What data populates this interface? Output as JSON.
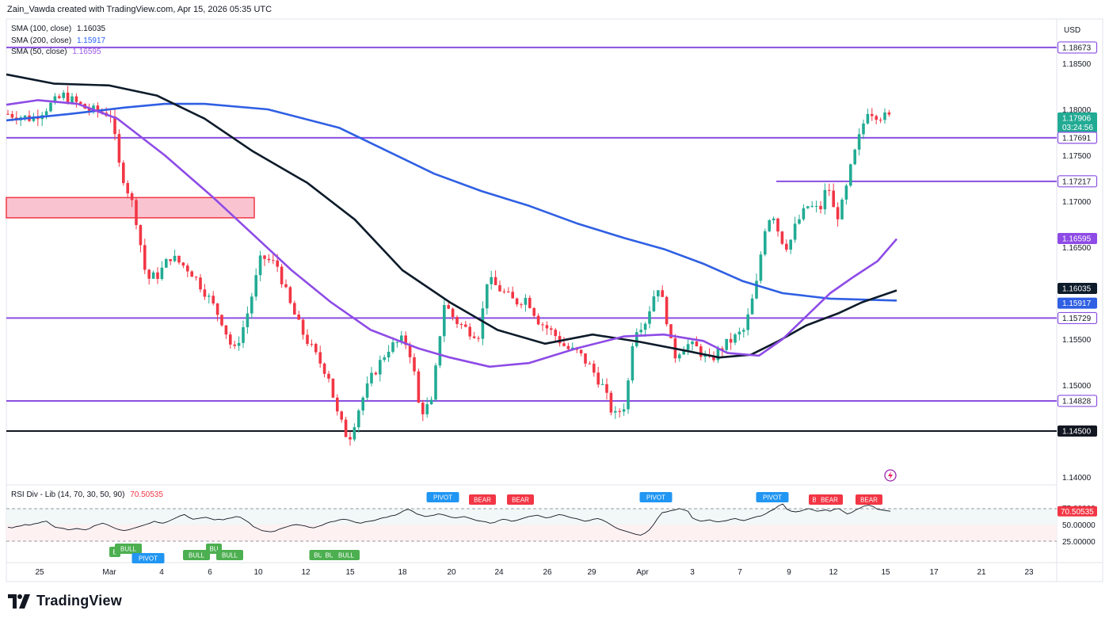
{
  "header": {
    "text": "Zain_Vawda created with TradingView.com, Apr 15, 2026 05:35 UTC"
  },
  "legend": [
    {
      "label": "SMA (100, close)",
      "value": "1.16035",
      "color": "#131722"
    },
    {
      "label": "SMA (200, close)",
      "value": "1.15917",
      "color": "#2962ff"
    },
    {
      "label": "SMA (50, close)",
      "value": "1.16595",
      "color": "#9b59e6"
    }
  ],
  "rsi_legend": {
    "label": "RSI Div - Lib (14, 70, 30, 50, 90)",
    "value": "70.50535"
  },
  "footer": {
    "brand": "TradingView"
  },
  "colors": {
    "up": "#22ab94",
    "down": "#f23645",
    "sma100": "#0d1b2a",
    "sma200": "#2f5fe3",
    "sma50": "#8e4be6",
    "level": "#8a4fe0",
    "zone": "#f9c4d0"
  },
  "chart_data": {
    "type": "candlestick",
    "currency": "USD",
    "y_axis_ticks": [
      "1.18500",
      "1.18000",
      "1.17500",
      "1.17000",
      "1.16500",
      "1.15500",
      "1.15000",
      "1.14000"
    ],
    "x_axis_ticks": [
      "25",
      "Mar",
      "4",
      "6",
      "10",
      "12",
      "15",
      "18",
      "20",
      "24",
      "26",
      "29",
      "Apr",
      "3",
      "7",
      "9",
      "12",
      "15",
      "17",
      "21",
      "23"
    ],
    "price_tags": [
      {
        "value": "1.18673",
        "style": "outline",
        "color": "#8a4fe0"
      },
      {
        "value": "1.17906",
        "style": "fill",
        "color": "#22ab94",
        "sub": "03:24:56"
      },
      {
        "value": "1.17691",
        "style": "outline",
        "color": "#8a4fe0"
      },
      {
        "value": "1.17217",
        "style": "outline",
        "color": "#8a4fe0"
      },
      {
        "value": "1.16595",
        "style": "fill",
        "color": "#8e4be6"
      },
      {
        "value": "1.16035",
        "style": "fill",
        "color": "#0d1b2a"
      },
      {
        "value": "1.15917",
        "style": "fill",
        "color": "#2f5fe3"
      },
      {
        "value": "1.15729",
        "style": "outline",
        "color": "#8a4fe0"
      },
      {
        "value": "1.14828",
        "style": "outline",
        "color": "#8a4fe0"
      },
      {
        "value": "1.14500",
        "style": "fill",
        "color": "#131722"
      }
    ],
    "horizontal_levels": [
      1.18673,
      1.17691,
      1.15729,
      1.14828
    ],
    "partial_levels": [
      {
        "price": 1.17217,
        "from_x": 980
      }
    ],
    "support_level": 1.145,
    "zone": {
      "top": 1.1704,
      "bottom": 1.1682
    },
    "sma100_path": [
      [
        1.1838,
        0
      ],
      [
        1.1828,
        60
      ],
      [
        1.1826,
        130
      ],
      [
        1.1815,
        190
      ],
      [
        1.179,
        250
      ],
      [
        1.1755,
        310
      ],
      [
        1.172,
        380
      ],
      [
        1.168,
        440
      ],
      [
        1.1625,
        500
      ],
      [
        1.159,
        560
      ],
      [
        1.156,
        620
      ],
      [
        1.1545,
        680
      ],
      [
        1.1555,
        740
      ],
      [
        1.1547,
        800
      ],
      [
        1.1537,
        860
      ],
      [
        1.153,
        900
      ],
      [
        1.1533,
        940
      ],
      [
        1.1548,
        975
      ],
      [
        1.1565,
        1010
      ],
      [
        1.1578,
        1050
      ],
      [
        1.159,
        1080
      ],
      [
        1.1603,
        1124
      ]
    ],
    "sma200_path": [
      [
        1.1788,
        0
      ],
      [
        1.1795,
        80
      ],
      [
        1.1802,
        150
      ],
      [
        1.1806,
        200
      ],
      [
        1.1806,
        250
      ],
      [
        1.18,
        330
      ],
      [
        1.178,
        420
      ],
      [
        1.1755,
        480
      ],
      [
        1.173,
        540
      ],
      [
        1.1711,
        600
      ],
      [
        1.1695,
        660
      ],
      [
        1.1676,
        720
      ],
      [
        1.166,
        780
      ],
      [
        1.1648,
        830
      ],
      [
        1.1632,
        880
      ],
      [
        1.1613,
        930
      ],
      [
        1.16,
        980
      ],
      [
        1.1594,
        1040
      ],
      [
        1.1592,
        1124
      ]
    ],
    "sma50_path": [
      [
        1.1805,
        0
      ],
      [
        1.181,
        40
      ],
      [
        1.1806,
        90
      ],
      [
        1.179,
        140
      ],
      [
        1.175,
        200
      ],
      [
        1.1705,
        260
      ],
      [
        1.1665,
        310
      ],
      [
        1.1625,
        360
      ],
      [
        1.159,
        410
      ],
      [
        1.156,
        460
      ],
      [
        1.154,
        520
      ],
      [
        1.153,
        560
      ],
      [
        1.152,
        610
      ],
      [
        1.1524,
        660
      ],
      [
        1.154,
        720
      ],
      [
        1.1553,
        780
      ],
      [
        1.1555,
        830
      ],
      [
        1.1548,
        880
      ],
      [
        1.1535,
        910
      ],
      [
        1.1532,
        950
      ],
      [
        1.155,
        980
      ],
      [
        1.1575,
        1010
      ],
      [
        1.16,
        1040
      ],
      [
        1.1618,
        1070
      ],
      [
        1.1635,
        1100
      ],
      [
        1.1659,
        1124
      ]
    ],
    "rsi": {
      "value": "70.50535",
      "ticks": [
        "75.00000",
        "50.00000",
        "25.00000"
      ],
      "series": [
        46,
        45,
        47,
        48,
        50,
        49,
        51,
        52,
        54,
        55,
        50,
        46,
        45,
        44,
        42,
        43,
        44,
        43,
        42,
        44,
        48,
        50,
        52,
        50,
        47,
        44,
        42,
        41,
        42,
        44,
        46,
        48,
        50,
        52,
        55,
        53,
        52,
        54,
        57,
        60,
        63,
        65,
        61,
        58,
        59,
        60,
        61,
        59,
        57,
        58,
        57,
        59,
        60,
        62,
        61,
        57,
        53,
        47,
        44,
        41,
        40,
        39,
        40,
        43,
        45,
        47,
        49,
        50,
        49,
        48,
        46,
        45,
        47,
        49,
        52,
        54,
        55,
        57,
        58,
        57,
        55,
        53,
        52,
        54,
        55,
        56,
        58,
        60,
        61,
        63,
        64,
        67,
        71,
        73,
        70,
        66,
        64,
        62,
        63,
        64,
        66,
        65,
        63,
        61,
        60,
        61,
        62,
        60,
        58,
        56,
        55,
        54,
        52,
        53,
        56,
        58,
        57,
        55,
        56,
        58,
        60,
        62,
        63,
        64,
        62,
        60,
        61,
        63,
        65,
        64,
        62,
        60,
        59,
        57,
        55,
        56,
        58,
        59,
        57,
        54,
        50,
        46,
        43,
        41,
        39,
        37,
        35,
        34,
        37,
        42,
        50,
        60,
        68,
        69,
        71,
        72,
        74,
        72,
        70,
        60,
        57,
        55,
        56,
        57,
        55,
        54,
        55,
        56,
        58,
        59,
        57,
        56,
        58,
        60,
        62,
        63,
        66,
        70,
        73,
        78,
        81,
        73,
        70,
        69,
        70,
        72,
        74,
        72,
        70,
        71,
        72,
        70,
        73,
        74,
        70,
        66,
        68,
        72,
        75,
        78,
        79,
        77,
        73,
        72,
        71,
        70
      ],
      "signals": [
        {
          "label": "B",
          "type": "bull",
          "x": 145
        },
        {
          "label": "BULL",
          "type": "bull",
          "x": 162
        },
        {
          "label": "PIVOT",
          "type": "pivot-low",
          "x": 187
        },
        {
          "label": "BULL",
          "type": "bull",
          "x": 248
        },
        {
          "label": "BU",
          "type": "bull",
          "x": 270
        },
        {
          "label": "BULL",
          "type": "bull",
          "x": 290
        },
        {
          "label": "BUL",
          "type": "bull",
          "x": 404
        },
        {
          "label": "BU",
          "type": "bull",
          "x": 416
        },
        {
          "label": "BULL",
          "type": "bull",
          "x": 437
        },
        {
          "label": "PIVOT",
          "type": "pivot-high",
          "x": 559
        },
        {
          "label": "BEAR",
          "type": "bear",
          "x": 609
        },
        {
          "label": "BEAR",
          "type": "bear",
          "x": 657
        },
        {
          "label": "PIVOT",
          "type": "pivot-high",
          "x": 828
        },
        {
          "label": "PIVOT",
          "type": "pivot-high",
          "x": 975
        },
        {
          "label": "B",
          "type": "bear",
          "x": 1028
        },
        {
          "label": "BEAR",
          "type": "bear",
          "x": 1047
        },
        {
          "label": "BEAR",
          "type": "bear",
          "x": 1097
        }
      ]
    }
  }
}
